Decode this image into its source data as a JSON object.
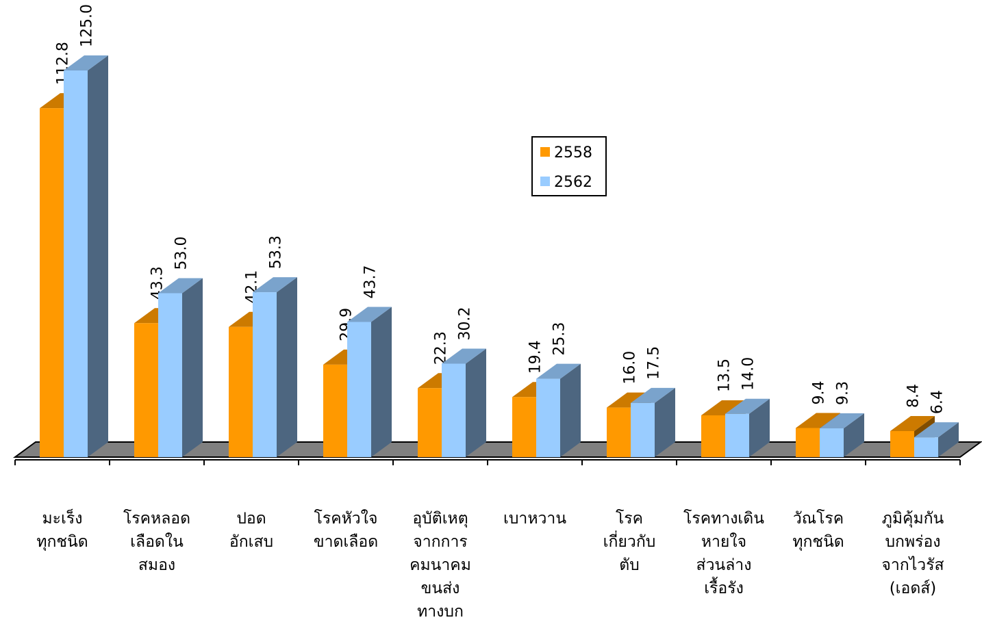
{
  "chart_data": {
    "type": "bar3d",
    "categories": [
      [
        "มะเร็ง",
        "ทุกชนิด"
      ],
      [
        "โรคหลอด",
        "เลือดใน",
        "สมอง"
      ],
      [
        "ปอด",
        "อักเสบ"
      ],
      [
        "โรคหัวใจ",
        "ขาดเลือด"
      ],
      [
        "อุบัติเหตุ",
        "จากการ",
        "คมนาคม",
        "ขนส่ง",
        "ทางบก"
      ],
      [
        "เบาหวาน"
      ],
      [
        "โรค",
        "เกี่ยวกับ",
        "ตับ"
      ],
      [
        "โรคทางเดิน",
        "หายใจ",
        "ส่วนล่าง",
        "เรื้อรัง"
      ],
      [
        "วัณโรค",
        "ทุกชนิด"
      ],
      [
        "ภูมิคุ้มกัน",
        "บกพร่อง",
        "จากไวรัส",
        "(เอดส์)"
      ]
    ],
    "series": [
      {
        "name": "2558",
        "color": "#ff9900",
        "values": [
          112.8,
          43.3,
          42.1,
          29.9,
          22.3,
          19.4,
          16,
          13.5,
          9.4,
          8.4
        ],
        "value_labels": [
          "112.8",
          "43.3",
          "42.1",
          "29.9",
          "22.3",
          "19.4",
          "16.0",
          "13.5",
          "9.4",
          "8.4"
        ]
      },
      {
        "name": "2562",
        "color": "#99ccff",
        "values": [
          125,
          53,
          53.3,
          43.7,
          30.2,
          25.3,
          17.5,
          14,
          9.3,
          6.4
        ],
        "value_labels": [
          "125.0",
          "53.0",
          "53.3",
          "43.7",
          "30.2",
          "25.3",
          "17.5",
          "14.0",
          "9.3",
          "6.4"
        ]
      }
    ],
    "legend": "center"
  }
}
